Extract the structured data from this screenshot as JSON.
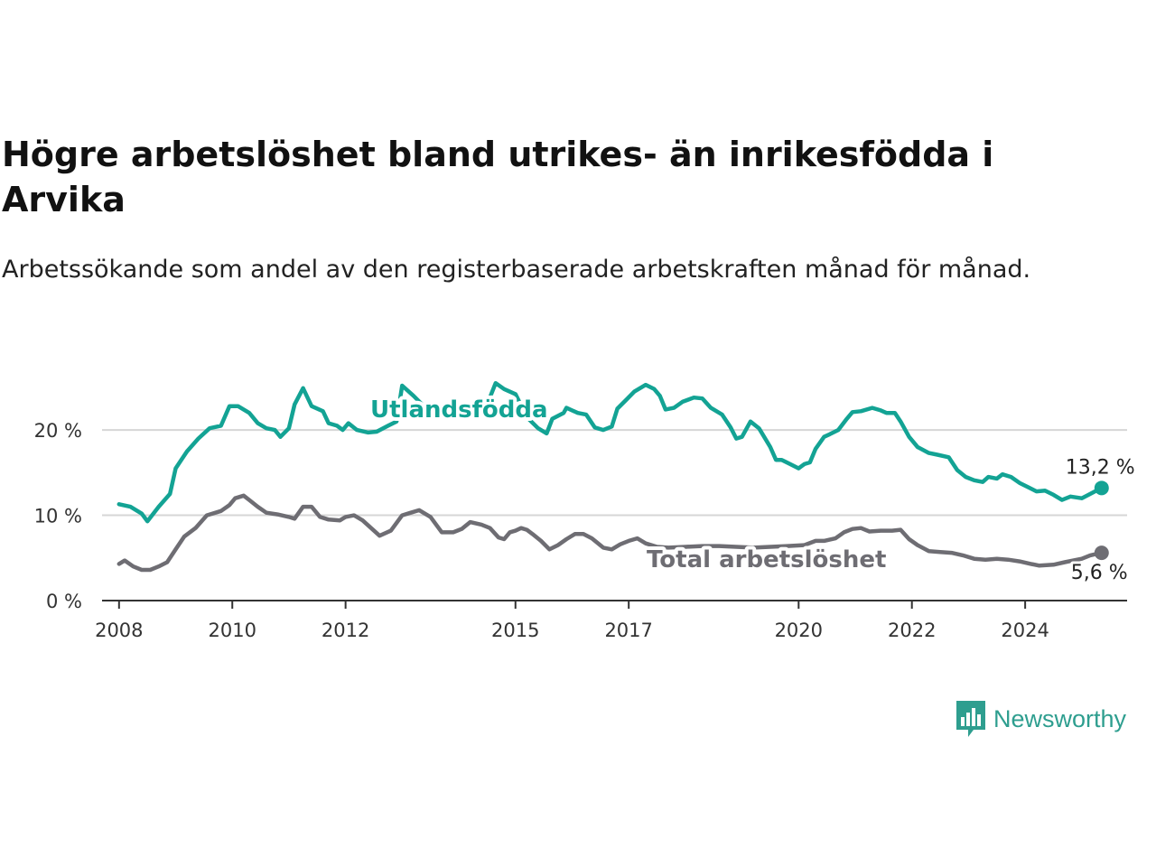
{
  "title": "Högre arbetslöshet bland utrikes- än inrikesfödda i Arvika",
  "subtitle": "Arbetssökande som andel av den registerbaserade arbetskraften månad för månad.",
  "brand": {
    "name": "Newsworthy",
    "color": "#2e9e8f",
    "icon": "newsworthy-logo-icon"
  },
  "chart_data": {
    "type": "line",
    "xlabel": "",
    "ylabel": "",
    "ylim": [
      0,
      27
    ],
    "y_ticks": [
      0,
      10,
      20
    ],
    "y_tick_labels": [
      "0 %",
      "10 %",
      "20 %"
    ],
    "x_range": [
      2007.7,
      2025.8
    ],
    "x_ticks": [
      2008,
      2010,
      2012,
      2015,
      2017,
      2020,
      2022,
      2024
    ],
    "x_tick_labels": [
      "2008",
      "2010",
      "2012",
      "2015",
      "2017",
      "2020",
      "2022",
      "2024"
    ],
    "grid": "horizontal",
    "series": [
      {
        "name": "Utlandsfödda",
        "color": "#13a394",
        "end_label": "13,2 %",
        "points": [
          [
            2008.0,
            11.3
          ],
          [
            2008.2,
            11.0
          ],
          [
            2008.4,
            10.2
          ],
          [
            2008.5,
            9.3
          ],
          [
            2008.7,
            11.0
          ],
          [
            2008.9,
            12.5
          ],
          [
            2009.0,
            15.5
          ],
          [
            2009.2,
            17.5
          ],
          [
            2009.4,
            19.0
          ],
          [
            2009.6,
            20.2
          ],
          [
            2009.8,
            20.5
          ],
          [
            2009.95,
            22.8
          ],
          [
            2010.1,
            22.8
          ],
          [
            2010.3,
            22.0
          ],
          [
            2010.45,
            20.8
          ],
          [
            2010.6,
            20.2
          ],
          [
            2010.75,
            20.0
          ],
          [
            2010.85,
            19.2
          ],
          [
            2011.0,
            20.2
          ],
          [
            2011.1,
            23.0
          ],
          [
            2011.25,
            24.9
          ],
          [
            2011.4,
            22.8
          ],
          [
            2011.6,
            22.2
          ],
          [
            2011.7,
            20.8
          ],
          [
            2011.85,
            20.5
          ],
          [
            2011.95,
            20.0
          ],
          [
            2012.05,
            20.8
          ],
          [
            2012.2,
            20.0
          ],
          [
            2012.4,
            19.7
          ],
          [
            2012.55,
            19.8
          ],
          [
            2012.75,
            20.5
          ],
          [
            2012.9,
            21.0
          ],
          [
            2013.0,
            25.2
          ],
          [
            2013.2,
            24.0
          ],
          [
            2013.5,
            22.0
          ],
          [
            2013.8,
            21.5
          ],
          [
            2014.2,
            22.0
          ],
          [
            2014.5,
            23.0
          ],
          [
            2014.65,
            25.5
          ],
          [
            2014.8,
            24.8
          ],
          [
            2015.0,
            24.2
          ],
          [
            2015.2,
            21.5
          ],
          [
            2015.4,
            20.2
          ],
          [
            2015.55,
            19.6
          ],
          [
            2015.65,
            21.3
          ],
          [
            2015.85,
            22.0
          ],
          [
            2015.9,
            22.6
          ],
          [
            2016.1,
            22.0
          ],
          [
            2016.25,
            21.8
          ],
          [
            2016.4,
            20.3
          ],
          [
            2016.55,
            20.0
          ],
          [
            2016.7,
            20.4
          ],
          [
            2016.8,
            22.5
          ],
          [
            2016.95,
            23.5
          ],
          [
            2017.1,
            24.5
          ],
          [
            2017.3,
            25.3
          ],
          [
            2017.45,
            24.8
          ],
          [
            2017.55,
            24.0
          ],
          [
            2017.65,
            22.4
          ],
          [
            2017.8,
            22.6
          ],
          [
            2017.95,
            23.3
          ],
          [
            2018.15,
            23.8
          ],
          [
            2018.3,
            23.7
          ],
          [
            2018.45,
            22.6
          ],
          [
            2018.65,
            21.8
          ],
          [
            2018.8,
            20.3
          ],
          [
            2018.9,
            19.0
          ],
          [
            2019.0,
            19.2
          ],
          [
            2019.15,
            21.0
          ],
          [
            2019.3,
            20.2
          ],
          [
            2019.5,
            18.0
          ],
          [
            2019.6,
            16.5
          ],
          [
            2019.7,
            16.5
          ],
          [
            2019.85,
            16.0
          ],
          [
            2020.0,
            15.5
          ],
          [
            2020.1,
            16.0
          ],
          [
            2020.2,
            16.2
          ],
          [
            2020.3,
            17.8
          ],
          [
            2020.45,
            19.2
          ],
          [
            2020.55,
            19.5
          ],
          [
            2020.7,
            20.0
          ],
          [
            2020.85,
            21.3
          ],
          [
            2020.95,
            22.1
          ],
          [
            2021.1,
            22.2
          ],
          [
            2021.3,
            22.6
          ],
          [
            2021.45,
            22.3
          ],
          [
            2021.55,
            22.0
          ],
          [
            2021.7,
            22.0
          ],
          [
            2021.8,
            21.0
          ],
          [
            2021.95,
            19.2
          ],
          [
            2022.1,
            18.0
          ],
          [
            2022.3,
            17.3
          ],
          [
            2022.45,
            17.1
          ],
          [
            2022.65,
            16.8
          ],
          [
            2022.8,
            15.3
          ],
          [
            2022.95,
            14.5
          ],
          [
            2023.1,
            14.1
          ],
          [
            2023.25,
            13.9
          ],
          [
            2023.35,
            14.5
          ],
          [
            2023.5,
            14.3
          ],
          [
            2023.6,
            14.8
          ],
          [
            2023.75,
            14.5
          ],
          [
            2023.9,
            13.8
          ],
          [
            2024.05,
            13.3
          ],
          [
            2024.2,
            12.8
          ],
          [
            2024.35,
            12.9
          ],
          [
            2024.5,
            12.4
          ],
          [
            2024.65,
            11.8
          ],
          [
            2024.8,
            12.2
          ],
          [
            2025.0,
            12.0
          ],
          [
            2025.15,
            12.5
          ],
          [
            2025.35,
            13.2
          ]
        ]
      },
      {
        "name": "Total arbetslöshet",
        "color": "#6e6d73",
        "end_label": "5,6 %",
        "points": [
          [
            2008.0,
            4.3
          ],
          [
            2008.1,
            4.7
          ],
          [
            2008.25,
            4.0
          ],
          [
            2008.4,
            3.6
          ],
          [
            2008.55,
            3.6
          ],
          [
            2008.7,
            4.0
          ],
          [
            2008.85,
            4.5
          ],
          [
            2009.0,
            6.0
          ],
          [
            2009.15,
            7.5
          ],
          [
            2009.35,
            8.5
          ],
          [
            2009.55,
            10.0
          ],
          [
            2009.8,
            10.5
          ],
          [
            2009.95,
            11.2
          ],
          [
            2010.05,
            12.0
          ],
          [
            2010.2,
            12.3
          ],
          [
            2010.3,
            11.8
          ],
          [
            2010.45,
            11.0
          ],
          [
            2010.6,
            10.3
          ],
          [
            2010.8,
            10.1
          ],
          [
            2011.0,
            9.8
          ],
          [
            2011.1,
            9.6
          ],
          [
            2011.25,
            11.0
          ],
          [
            2011.4,
            11.0
          ],
          [
            2011.55,
            9.8
          ],
          [
            2011.7,
            9.5
          ],
          [
            2011.9,
            9.4
          ],
          [
            2012.0,
            9.8
          ],
          [
            2012.15,
            10.0
          ],
          [
            2012.3,
            9.4
          ],
          [
            2012.45,
            8.5
          ],
          [
            2012.6,
            7.6
          ],
          [
            2012.8,
            8.2
          ],
          [
            2013.0,
            10.0
          ],
          [
            2013.15,
            10.3
          ],
          [
            2013.3,
            10.6
          ],
          [
            2013.5,
            9.8
          ],
          [
            2013.7,
            8.0
          ],
          [
            2013.9,
            8.0
          ],
          [
            2014.05,
            8.4
          ],
          [
            2014.2,
            9.2
          ],
          [
            2014.4,
            8.9
          ],
          [
            2014.55,
            8.5
          ],
          [
            2014.7,
            7.4
          ],
          [
            2014.8,
            7.2
          ],
          [
            2014.9,
            8.0
          ],
          [
            2015.0,
            8.2
          ],
          [
            2015.1,
            8.5
          ],
          [
            2015.2,
            8.3
          ],
          [
            2015.3,
            7.8
          ],
          [
            2015.45,
            7.0
          ],
          [
            2015.6,
            6.0
          ],
          [
            2015.75,
            6.5
          ],
          [
            2015.9,
            7.2
          ],
          [
            2016.05,
            7.8
          ],
          [
            2016.2,
            7.8
          ],
          [
            2016.35,
            7.3
          ],
          [
            2016.55,
            6.2
          ],
          [
            2016.7,
            6.0
          ],
          [
            2016.85,
            6.6
          ],
          [
            2017.0,
            7.0
          ],
          [
            2017.15,
            7.3
          ],
          [
            2017.3,
            6.7
          ],
          [
            2017.5,
            6.3
          ],
          [
            2017.7,
            6.2
          ],
          [
            2018.0,
            6.3
          ],
          [
            2018.3,
            6.4
          ],
          [
            2018.6,
            6.4
          ],
          [
            2018.9,
            6.3
          ],
          [
            2019.2,
            6.2
          ],
          [
            2019.5,
            6.3
          ],
          [
            2019.8,
            6.4
          ],
          [
            2020.1,
            6.5
          ],
          [
            2020.3,
            7.0
          ],
          [
            2020.45,
            7.0
          ],
          [
            2020.65,
            7.3
          ],
          [
            2020.8,
            8.0
          ],
          [
            2020.95,
            8.4
          ],
          [
            2021.1,
            8.5
          ],
          [
            2021.25,
            8.1
          ],
          [
            2021.45,
            8.2
          ],
          [
            2021.65,
            8.2
          ],
          [
            2021.8,
            8.3
          ],
          [
            2021.95,
            7.2
          ],
          [
            2022.1,
            6.5
          ],
          [
            2022.3,
            5.8
          ],
          [
            2022.5,
            5.7
          ],
          [
            2022.7,
            5.6
          ],
          [
            2022.9,
            5.3
          ],
          [
            2023.1,
            4.9
          ],
          [
            2023.3,
            4.8
          ],
          [
            2023.5,
            4.9
          ],
          [
            2023.7,
            4.8
          ],
          [
            2023.9,
            4.6
          ],
          [
            2024.1,
            4.3
          ],
          [
            2024.25,
            4.1
          ],
          [
            2024.5,
            4.2
          ],
          [
            2024.7,
            4.5
          ],
          [
            2024.85,
            4.7
          ],
          [
            2025.0,
            4.9
          ],
          [
            2025.15,
            5.3
          ],
          [
            2025.35,
            5.6
          ]
        ]
      }
    ]
  }
}
